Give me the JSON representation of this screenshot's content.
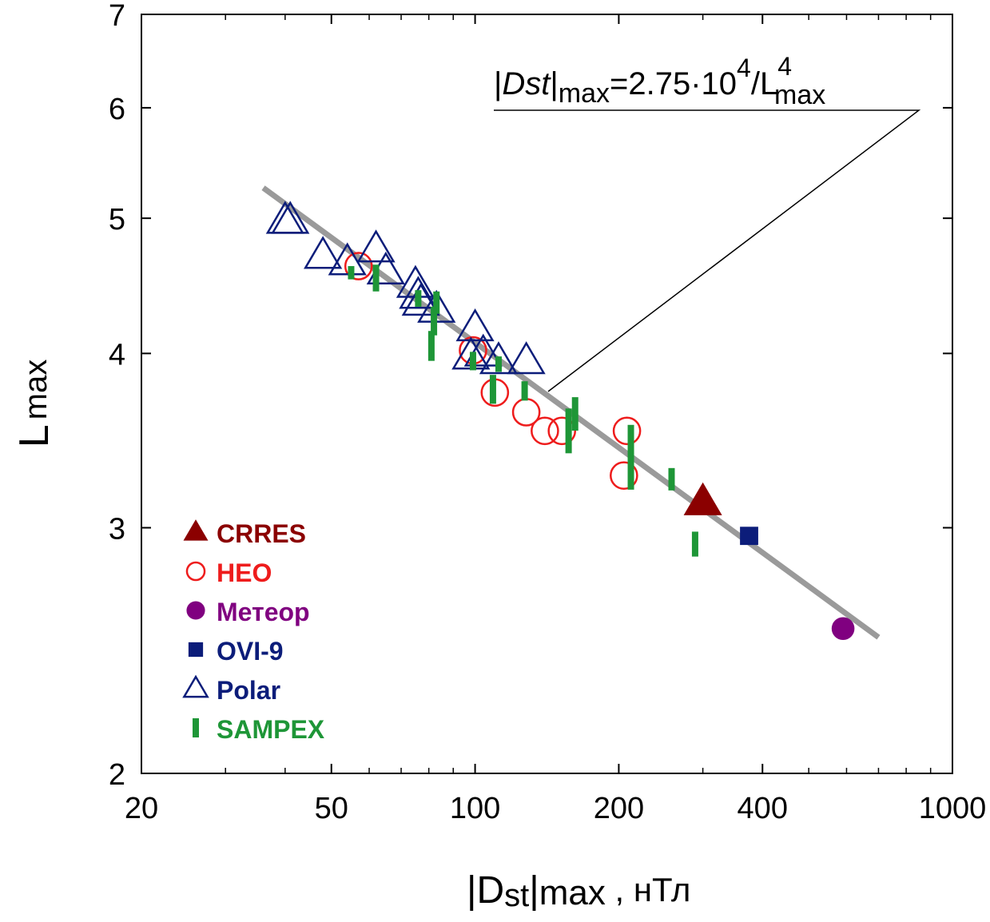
{
  "chart_data": {
    "type": "scatter",
    "xscale": "log",
    "yscale": "log",
    "xlim": [
      20,
      1000
    ],
    "ylim": [
      2,
      7
    ],
    "x_major_ticks": [
      20,
      50,
      100,
      200,
      400,
      1000
    ],
    "x_minor_ticks": [
      30,
      40,
      60,
      70,
      80,
      90,
      300,
      500,
      600,
      700,
      800,
      900
    ],
    "y_major_ticks": [
      2,
      3,
      4,
      5,
      6,
      7
    ],
    "xlabel": {
      "base": "|D",
      "sub": "st",
      "mid": "|",
      "sub2": "max",
      "unit": " , нТл"
    },
    "ylabel": {
      "base": "L",
      "sub": "max"
    },
    "formula": {
      "p1": "|",
      "p2": "Dst",
      "p3": "|",
      "p4": "max",
      "p5": "=2.75·10",
      "p6": "4",
      "p7": "/L",
      "p8": "4",
      "p9": "max"
    },
    "fit_line": {
      "a": 27500,
      "power": 4,
      "x_range": [
        36,
        700
      ],
      "color": "#9a9a9a"
    },
    "legend_position": "bottom-left",
    "series": [
      {
        "name": "CRRES",
        "marker": "triangle-filled",
        "color": "#8b0000",
        "points": [
          [
            300,
            3.13
          ]
        ]
      },
      {
        "name": "HEO",
        "marker": "circle-open",
        "color": "#ee1c1c",
        "points": [
          [
            57,
            4.62
          ],
          [
            99,
            4.02
          ],
          [
            110,
            3.75
          ],
          [
            128,
            3.63
          ],
          [
            140,
            3.52
          ],
          [
            152,
            3.52
          ],
          [
            205,
            3.27
          ],
          [
            208,
            3.52
          ]
        ]
      },
      {
        "name": "Метеор",
        "marker": "circle-filled",
        "color": "#800080",
        "points": [
          [
            590,
            2.54
          ]
        ]
      },
      {
        "name": "OVI-9",
        "marker": "square-filled",
        "color": "#0c1d7a",
        "points": [
          [
            375,
            2.96
          ]
        ]
      },
      {
        "name": "Polar",
        "marker": "triangle-open",
        "color": "#0c1d7a",
        "points": [
          [
            40,
            4.98
          ],
          [
            41,
            4.98
          ],
          [
            48,
            4.7
          ],
          [
            54,
            4.65
          ],
          [
            62,
            4.75
          ],
          [
            65,
            4.58
          ],
          [
            75,
            4.48
          ],
          [
            76,
            4.4
          ],
          [
            77,
            4.35
          ],
          [
            83,
            4.3
          ],
          [
            100,
            4.17
          ],
          [
            98,
            3.98
          ],
          [
            104,
            4.0
          ],
          [
            112,
            3.95
          ],
          [
            128,
            3.95
          ]
        ]
      },
      {
        "name": "SAMPEX",
        "marker": "bar",
        "color": "#1e9637",
        "points": [
          [
            55,
            4.57,
            0.05
          ],
          [
            62,
            4.53,
            0.1
          ],
          [
            76,
            4.38,
            0.06
          ],
          [
            81,
            4.05,
            0.1
          ],
          [
            82,
            4.22,
            0.1
          ],
          [
            83,
            4.35,
            0.08
          ],
          [
            99,
            3.95,
            0.06
          ],
          [
            109,
            3.77,
            0.09
          ],
          [
            112,
            3.93,
            0.05
          ],
          [
            127,
            3.76,
            0.06
          ],
          [
            157,
            3.52,
            0.13
          ],
          [
            162,
            3.62,
            0.1
          ],
          [
            212,
            3.37,
            0.18
          ],
          [
            258,
            3.25,
            0.06
          ],
          [
            289,
            2.92,
            0.06
          ]
        ]
      }
    ]
  }
}
